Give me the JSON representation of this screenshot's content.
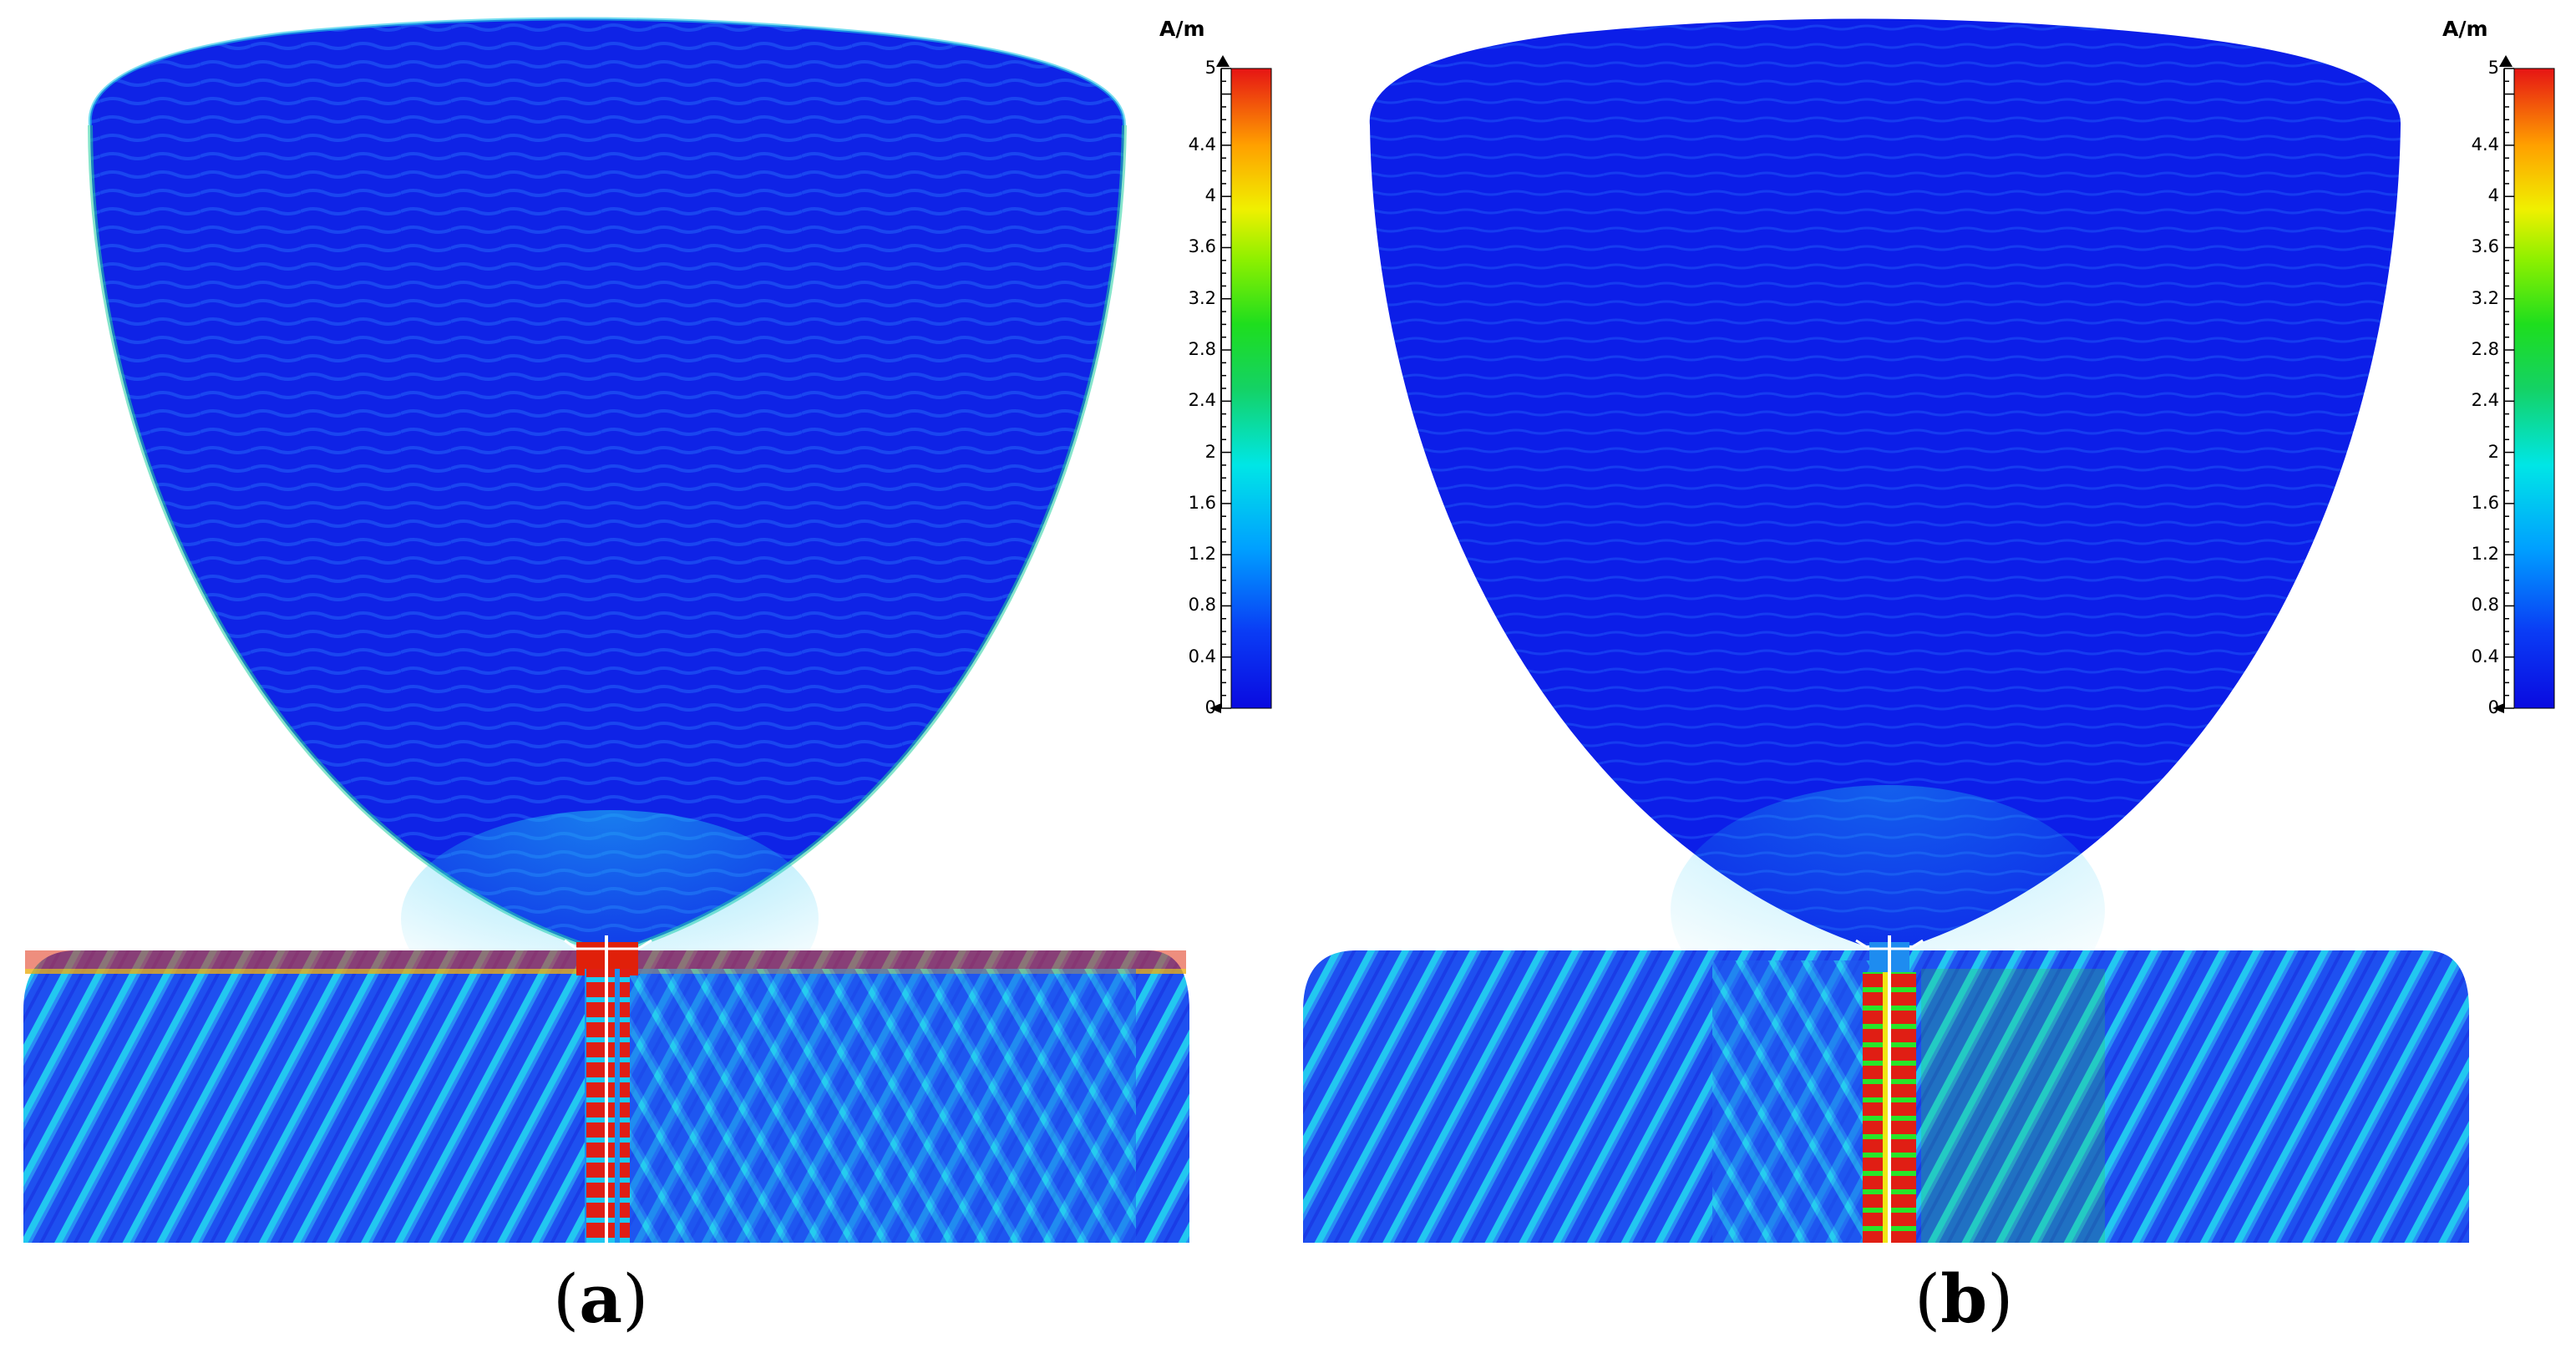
{
  "figure": {
    "panels": [
      {
        "id": "a",
        "label_open": "(",
        "label_letter": "a",
        "label_close": ")",
        "colorbar": {
          "unit": "A/m",
          "ticks": [
            "0",
            "0.4",
            "0.8",
            "1.2",
            "1.6",
            "2",
            "2.4",
            "2.8",
            "3.2",
            "3.6",
            "4",
            "4.4",
            "5"
          ],
          "min": 0,
          "max": 5
        }
      },
      {
        "id": "b",
        "label_open": "(",
        "label_letter": "b",
        "label_close": ")",
        "colorbar": {
          "unit": "A/m",
          "ticks": [
            "0",
            "0.4",
            "0.8",
            "1.2",
            "1.6",
            "2",
            "2.4",
            "2.8",
            "3.2",
            "3.6",
            "4",
            "4.4",
            "5"
          ],
          "min": 0,
          "max": 5
        }
      }
    ],
    "colors": {
      "field_low": "#0a14e6",
      "field_mid": "#00c8ff",
      "field_green": "#23d23c",
      "field_yellow": "#f0f000",
      "field_high": "#e61e0a"
    }
  }
}
